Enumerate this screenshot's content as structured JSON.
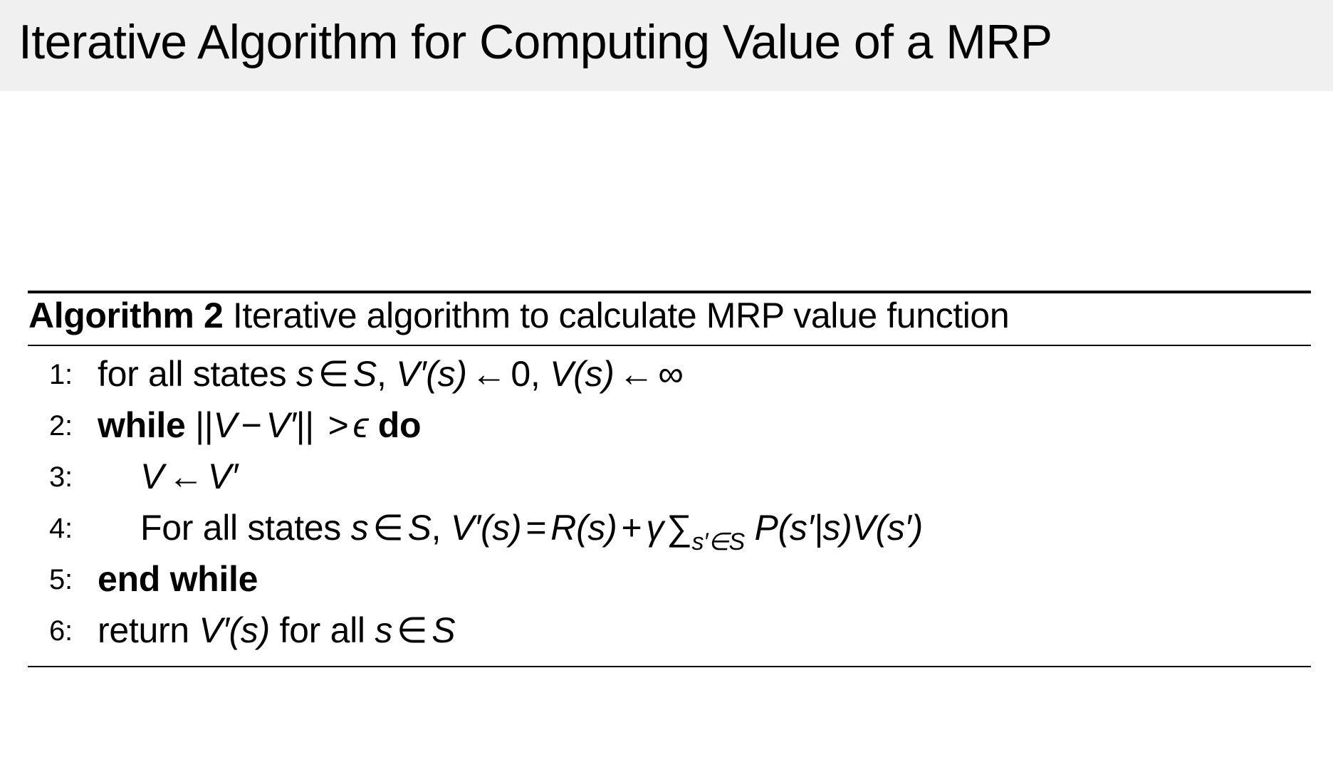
{
  "slide": {
    "title": "Iterative Algorithm for Computing Value of a MRP"
  },
  "algorithm": {
    "label": "Algorithm 2",
    "caption": "Iterative algorithm to calculate MRP value function",
    "lines": [
      {
        "num": "1:",
        "p": [
          "for all states ",
          "s",
          "∈",
          "S",
          ", ",
          "V′(s)",
          "←",
          "0, ",
          "V(s)",
          "←",
          "∞"
        ]
      },
      {
        "num": "2:",
        "p": [
          "while",
          " ||",
          "V",
          "−",
          "V′",
          "|| ",
          ">",
          "ϵ",
          " do"
        ]
      },
      {
        "num": "3:",
        "p": [
          "V",
          "←",
          "V′"
        ]
      },
      {
        "num": "4:",
        "p": [
          "For all states ",
          "s",
          "∈",
          "S",
          ", ",
          "V′(s)",
          "=",
          "R(s)",
          "+",
          "γ",
          "∑",
          "s′∈S",
          " P(s′|s)V(s′)"
        ]
      },
      {
        "num": "5:",
        "p": [
          "end while"
        ]
      },
      {
        "num": "6:",
        "p": [
          "return ",
          "V′(s)",
          " for all ",
          "s",
          "∈",
          "S"
        ]
      }
    ]
  }
}
